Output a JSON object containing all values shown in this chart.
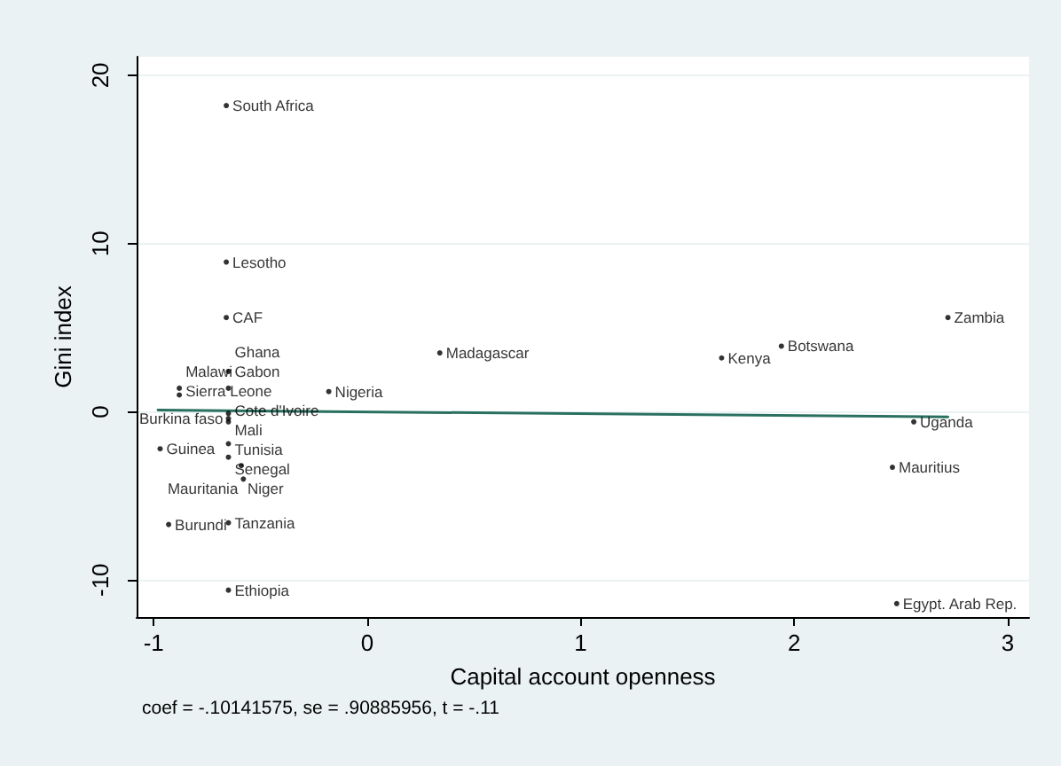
{
  "chart_data": {
    "type": "scatter",
    "xlabel": "Capital account openness",
    "ylabel": "Gini index",
    "xlim": [
      -1.08,
      3.1
    ],
    "ylim": [
      -12.2,
      21.1
    ],
    "xticks": [
      -1,
      0,
      1,
      2,
      3
    ],
    "yticks": [
      -10,
      0,
      10,
      20
    ],
    "grid": "y",
    "marker": "circle",
    "annotations": [
      "coef = -.10141575, se = .90885956, t = -.11"
    ],
    "series": [
      {
        "color": "#000000",
        "x": [
          -0.66,
          -0.66,
          -0.66,
          -0.65,
          -0.65,
          -0.88,
          -0.88,
          -0.18,
          -0.65,
          -0.65,
          -0.65,
          -0.97,
          -0.65,
          -0.65,
          -0.59,
          -0.58,
          -0.93,
          -0.65,
          -0.65,
          0.34,
          1.66,
          1.94,
          2.72,
          2.56,
          2.46,
          2.48
        ],
        "values": [
          18.2,
          8.9,
          5.6,
          2.4,
          1.4,
          1.4,
          1.0,
          1.2,
          -0.1,
          -0.4,
          -0.6,
          -2.2,
          -1.9,
          -2.7,
          -3.2,
          -4.0,
          -6.7,
          -6.6,
          -10.6,
          3.5,
          3.2,
          3.9,
          5.6,
          -0.6,
          -3.3,
          -11.4
        ],
        "value_labels": [
          "South Africa",
          "Lesotho",
          "CAF",
          "Ghana",
          "Gabon",
          "Malawi",
          "Sierra Leone",
          "Nigeria",
          "Cote d'Ivoire",
          "Burkina faso",
          "Mali",
          "Guinea",
          "Tunisia",
          "Senegal",
          "Niger",
          "Mauritania",
          "Burundi",
          "Tanzania",
          "Ethiopia",
          "Madagascar",
          "Kenya",
          "Botswana",
          "Zambia",
          "Uganda",
          "Mauritius",
          "Egypt. Arab Rep."
        ]
      },
      {
        "type": "line",
        "color": "#2a7060",
        "marker": "none",
        "x": [
          -0.98,
          2.72
        ],
        "values": [
          0.1,
          -0.3
        ]
      }
    ]
  }
}
